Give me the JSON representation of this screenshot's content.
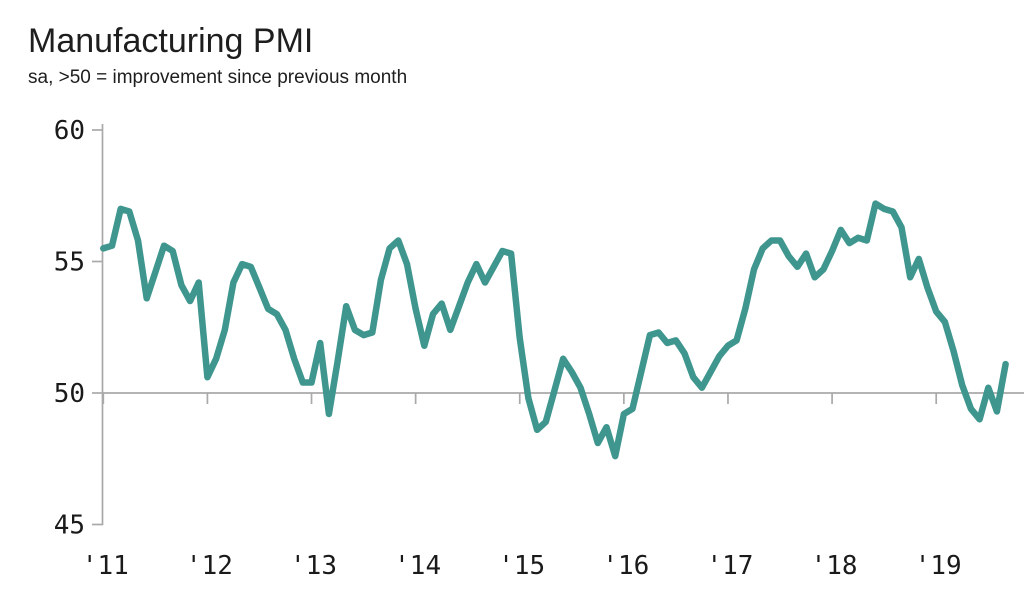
{
  "header": {
    "title": "Manufacturing PMI",
    "subtitle": "sa, >50 = improvement since previous month"
  },
  "chart_data": {
    "type": "line",
    "title": "Manufacturing PMI",
    "subtitle": "sa, >50 = improvement since previous month",
    "frequency": "monthly",
    "x_range": "Jan 2011 - Sep 2019",
    "x_tick_labels": [
      "'11",
      "'12",
      "'13",
      "'14",
      "'15",
      "'16",
      "'17",
      "'18",
      "'19"
    ],
    "y_tick_values": [
      60,
      55,
      50,
      45
    ],
    "ylim": [
      45,
      60
    ],
    "reference_line": 50,
    "grid": "horizontal reference line at 50 only",
    "legend_position": "none",
    "colors": {
      "line": "#3F968E",
      "axis": "#A9A9A9",
      "text": "#1A1A1A"
    },
    "series": [
      {
        "name": "Manufacturing PMI (sa)",
        "values": [
          55.5,
          55.6,
          57.0,
          56.9,
          55.8,
          53.6,
          54.6,
          55.6,
          55.4,
          54.1,
          53.5,
          54.2,
          50.6,
          51.3,
          52.4,
          54.2,
          54.9,
          54.8,
          54.0,
          53.2,
          53.0,
          52.4,
          51.3,
          50.4,
          50.4,
          51.9,
          49.2,
          51.2,
          53.3,
          52.4,
          52.2,
          52.3,
          54.3,
          55.5,
          55.8,
          54.9,
          53.2,
          51.8,
          53.0,
          53.4,
          52.4,
          53.3,
          54.2,
          54.9,
          54.2,
          54.8,
          55.4,
          55.3,
          52.1,
          49.8,
          48.6,
          48.9,
          50.1,
          51.3,
          50.8,
          50.2,
          49.2,
          48.1,
          48.7,
          47.6,
          49.2,
          49.4,
          50.8,
          52.2,
          52.3,
          51.9,
          52.0,
          51.5,
          50.6,
          50.2,
          50.8,
          51.4,
          51.8,
          52.0,
          53.2,
          54.7,
          55.5,
          55.8,
          55.8,
          55.2,
          54.8,
          55.3,
          54.4,
          54.7,
          55.4,
          56.2,
          55.7,
          55.9,
          55.8,
          57.2,
          57.0,
          56.9,
          56.3,
          54.4,
          55.1,
          54.0,
          53.1,
          52.7,
          51.6,
          50.3,
          49.4,
          49.0,
          50.2,
          49.3,
          51.1
        ]
      }
    ]
  }
}
